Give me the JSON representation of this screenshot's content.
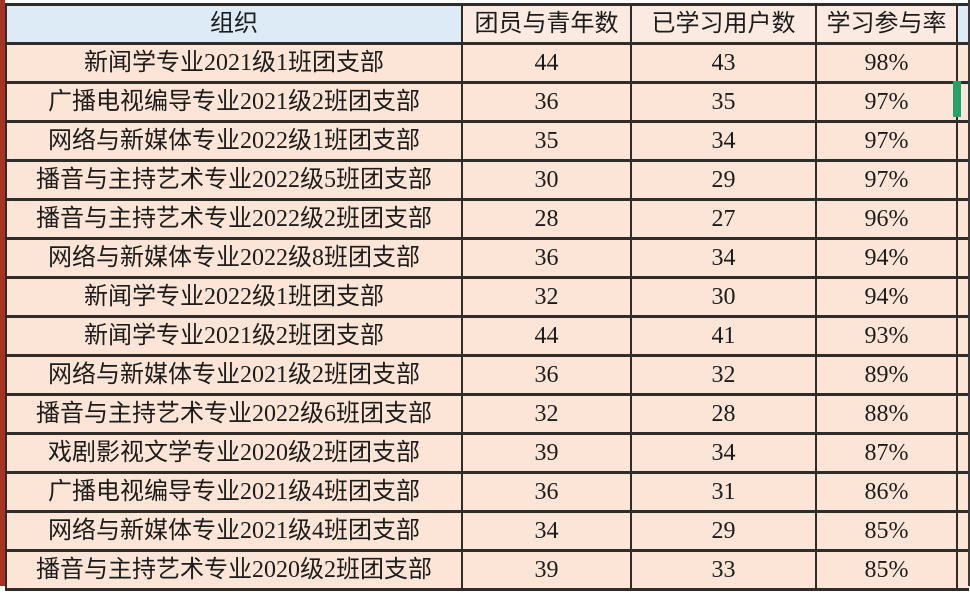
{
  "table": {
    "columns": [
      "组织",
      "团员与青年数",
      "已学习用户数",
      "学习参与率"
    ],
    "rows": [
      {
        "org": "新闻学专业2021级1班团支部",
        "members": "44",
        "learned": "43",
        "rate": "98%"
      },
      {
        "org": "广播电视编导专业2021级2班团支部",
        "members": "36",
        "learned": "35",
        "rate": "97%"
      },
      {
        "org": "网络与新媒体专业2022级1班团支部",
        "members": "35",
        "learned": "34",
        "rate": "97%"
      },
      {
        "org": "播音与主持艺术专业2022级5班团支部",
        "members": "30",
        "learned": "29",
        "rate": "97%"
      },
      {
        "org": "播音与主持艺术专业2022级2班团支部",
        "members": "28",
        "learned": "27",
        "rate": "96%"
      },
      {
        "org": "网络与新媒体专业2022级8班团支部",
        "members": "36",
        "learned": "34",
        "rate": "94%"
      },
      {
        "org": "新闻学专业2022级1班团支部",
        "members": "32",
        "learned": "30",
        "rate": "94%"
      },
      {
        "org": "新闻学专业2021级2班团支部",
        "members": "44",
        "learned": "41",
        "rate": "93%"
      },
      {
        "org": "网络与新媒体专业2021级2班团支部",
        "members": "36",
        "learned": "32",
        "rate": "89%"
      },
      {
        "org": "播音与主持艺术专业2022级6班团支部",
        "members": "32",
        "learned": "28",
        "rate": "88%"
      },
      {
        "org": "戏剧影视文学专业2020级2班团支部",
        "members": "39",
        "learned": "34",
        "rate": "87%"
      },
      {
        "org": "广播电视编导专业2021级4班团支部",
        "members": "36",
        "learned": "31",
        "rate": "86%"
      },
      {
        "org": "网络与新媒体专业2021级4班团支部",
        "members": "34",
        "learned": "29",
        "rate": "85%"
      },
      {
        "org": "播音与主持艺术专业2020级2班团支部",
        "members": "39",
        "learned": "33",
        "rate": "85%"
      }
    ]
  },
  "colors": {
    "header_org_bg": "#ddebf7",
    "header_stat_bg": "#fbeae1",
    "row_bg": "#fce4d6",
    "border": "#2f2c29",
    "left_edge": "#a93226",
    "selection_green": "#26a269"
  }
}
